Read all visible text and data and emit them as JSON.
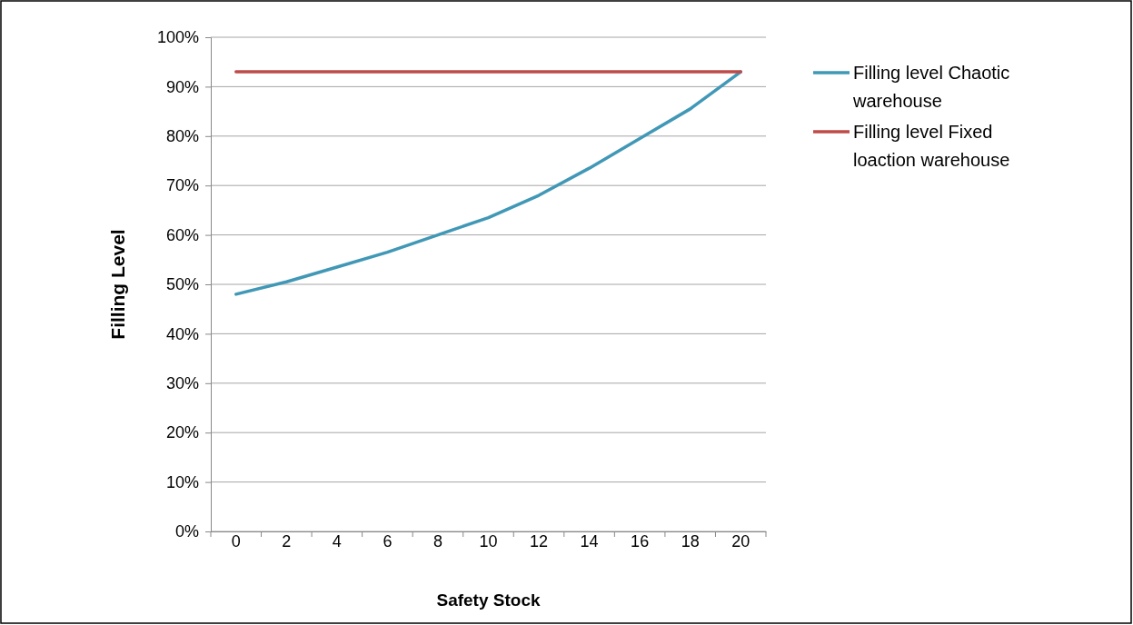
{
  "chart_data": {
    "type": "line",
    "xlabel": "Safety Stock",
    "ylabel": "Filling Level",
    "categories": [
      "0",
      "2",
      "4",
      "6",
      "8",
      "10",
      "12",
      "14",
      "16",
      "18",
      "20"
    ],
    "series": [
      {
        "name": "Filling level Chaotic warehouse",
        "color": "#4198b6",
        "values": [
          0.48,
          0.505,
          0.535,
          0.565,
          0.6,
          0.635,
          0.68,
          0.735,
          0.795,
          0.855,
          0.93
        ]
      },
      {
        "name": "Filling level Fixed loaction warehouse",
        "color": "#be4b48",
        "values": [
          0.93,
          0.93,
          0.93,
          0.93,
          0.93,
          0.93,
          0.93,
          0.93,
          0.93,
          0.93,
          0.93
        ]
      }
    ],
    "ylim": [
      0,
      1
    ],
    "yticks": [
      {
        "value": 0,
        "label": "0%"
      },
      {
        "value": 0.1,
        "label": "10%"
      },
      {
        "value": 0.2,
        "label": "20%"
      },
      {
        "value": 0.3,
        "label": "30%"
      },
      {
        "value": 0.4,
        "label": "40%"
      },
      {
        "value": 0.5,
        "label": "50%"
      },
      {
        "value": 0.6,
        "label": "60%"
      },
      {
        "value": 0.7,
        "label": "70%"
      },
      {
        "value": 0.8,
        "label": "80%"
      },
      {
        "value": 0.9,
        "label": "90%"
      },
      {
        "value": 1,
        "label": "100%"
      }
    ],
    "grid": "y",
    "legend": "right",
    "marker": "none",
    "line_style": "solid"
  }
}
